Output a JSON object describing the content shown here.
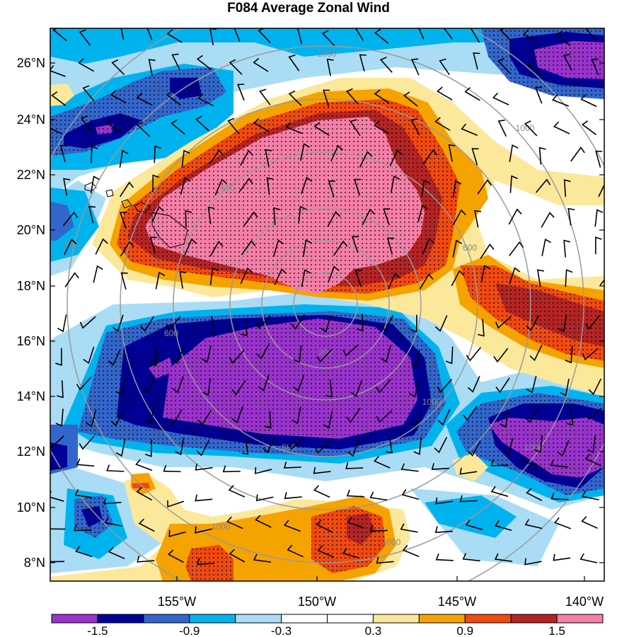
{
  "title": "F084 Average Zonal Wind",
  "lat_labels": [
    "26°N",
    "24°N",
    "22°N",
    "20°N",
    "18°N",
    "16°N",
    "14°N",
    "12°N",
    "10°N",
    "8°N"
  ],
  "lon_labels": [
    "155°W",
    "150°W",
    "145°W",
    "140°W"
  ],
  "colorbar": {
    "colors": [
      "#9933cc",
      "#000099",
      "#3366cc",
      "#00b3ee",
      "#aadcf5",
      "#ffffff",
      "#ffffff",
      "#fce89a",
      "#f5a300",
      "#f04a10",
      "#b52424",
      "#f57fa8"
    ],
    "labels": [
      "-1.5",
      "-0.9",
      "-0.3",
      "0.3",
      "0.9",
      "1.5"
    ]
  },
  "range_rings": {
    "labels": [
      "200",
      "600",
      "600",
      "600",
      "600",
      "1000",
      "1000",
      "1000",
      "1000",
      "1000",
      "1000",
      "1000"
    ]
  }
}
